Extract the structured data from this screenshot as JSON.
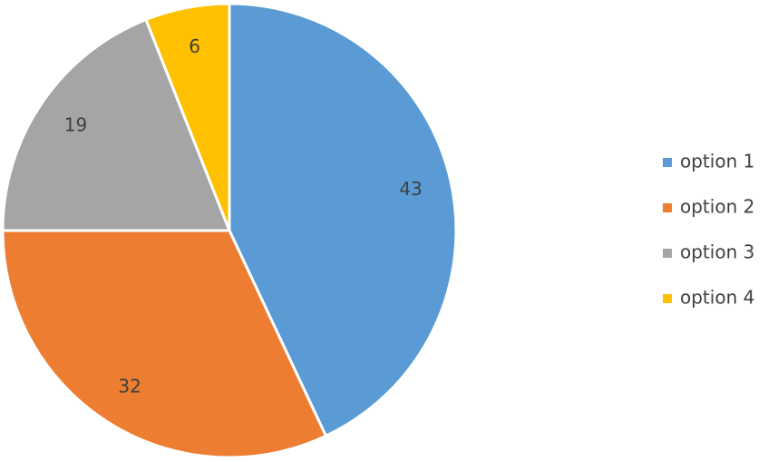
{
  "chart_data": {
    "type": "pie",
    "categories": [
      "option 1",
      "option 2",
      "option 3",
      "option 4"
    ],
    "values": [
      43,
      32,
      19,
      6
    ],
    "colors": [
      "#5b9bd5",
      "#ed7d31",
      "#a5a5a5",
      "#ffc000"
    ],
    "legend": "right"
  }
}
